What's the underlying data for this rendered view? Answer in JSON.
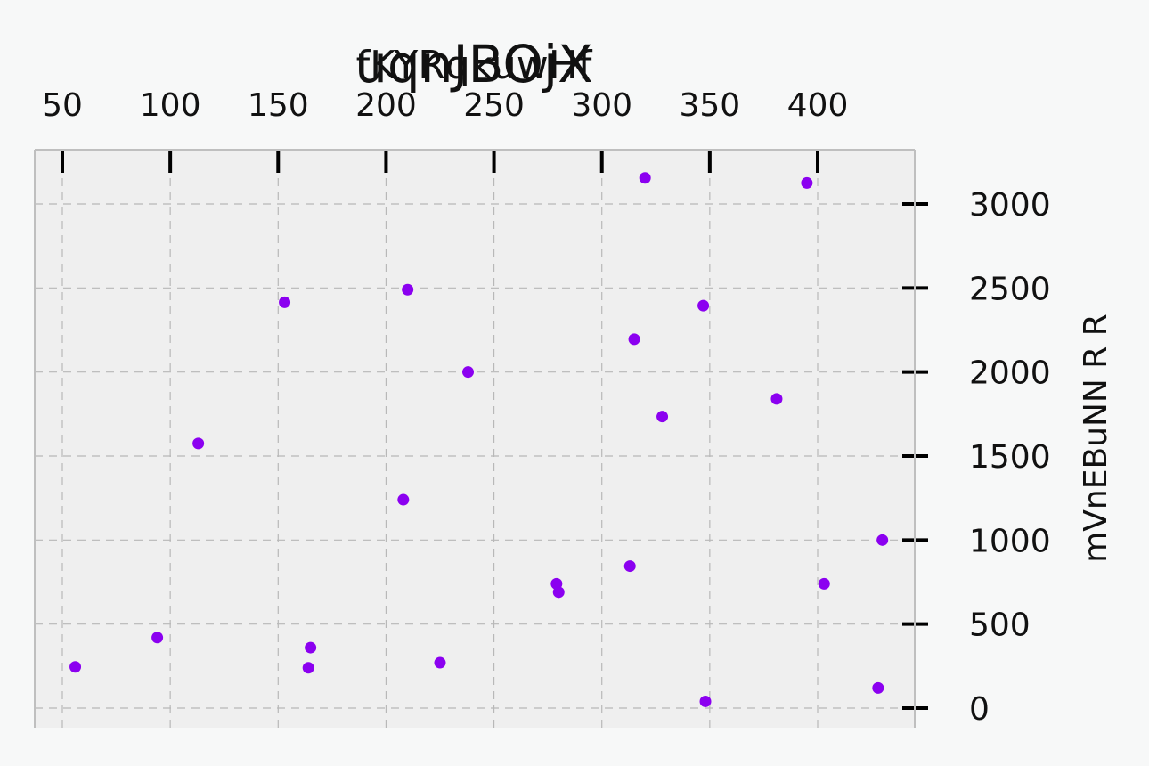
{
  "chart_data": {
    "type": "scatter",
    "title": "uqnJBOjX",
    "subtitle": "fKYRqkuwHf",
    "xlabel": "",
    "ylabel": "mVnEBuNN R R",
    "x_axis_position": "top",
    "y_axis_position": "right",
    "xlim": [
      37,
      444
    ],
    "ylim": [
      -120,
      3320
    ],
    "xticks": [
      50,
      100,
      150,
      200,
      250,
      300,
      350,
      400
    ],
    "yticks": [
      0,
      500,
      1000,
      1500,
      2000,
      2500,
      3000
    ],
    "grid": true,
    "colors": {
      "points": "#8b00f0",
      "plot_bg": "#efefef",
      "page_bg": "#f7f8f8",
      "grid": "#b8b8b8",
      "frame": "#bfbfbf"
    },
    "points": [
      {
        "x": 56,
        "y": 245
      },
      {
        "x": 94,
        "y": 420
      },
      {
        "x": 113,
        "y": 1575
      },
      {
        "x": 153,
        "y": 2415
      },
      {
        "x": 164,
        "y": 240
      },
      {
        "x": 165,
        "y": 360
      },
      {
        "x": 208,
        "y": 1240
      },
      {
        "x": 210,
        "y": 2490
      },
      {
        "x": 225,
        "y": 270
      },
      {
        "x": 238,
        "y": 2000
      },
      {
        "x": 279,
        "y": 740
      },
      {
        "x": 280,
        "y": 690
      },
      {
        "x": 313,
        "y": 845
      },
      {
        "x": 315,
        "y": 2195
      },
      {
        "x": 320,
        "y": 3155
      },
      {
        "x": 328,
        "y": 1735
      },
      {
        "x": 347,
        "y": 2395
      },
      {
        "x": 348,
        "y": 40
      },
      {
        "x": 381,
        "y": 1840
      },
      {
        "x": 395,
        "y": 3125
      },
      {
        "x": 403,
        "y": 740
      },
      {
        "x": 428,
        "y": 120
      },
      {
        "x": 430,
        "y": 1000
      }
    ]
  }
}
